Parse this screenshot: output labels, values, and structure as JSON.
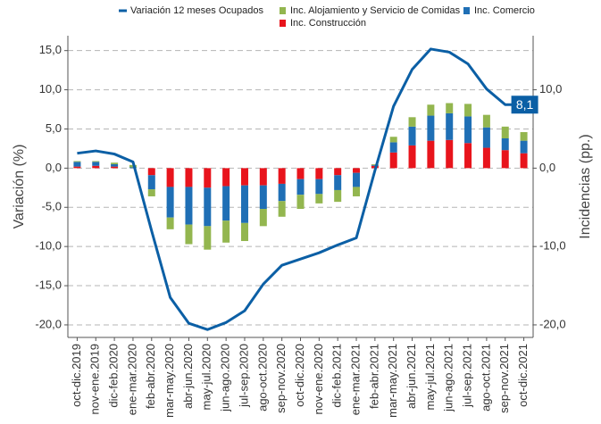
{
  "chart_data": {
    "type": "bar-line",
    "y_label": "Variación (%)",
    "y2_label": "Incidencias (pp.)",
    "categories": [
      "oct-dic.2019",
      "nov-ene.2019",
      "dic-feb.2020",
      "ene-mar.2020",
      "feb-abr.2020",
      "mar-may.2020",
      "abr-jun.2020",
      "may-jul.2020",
      "jun-ago.2020",
      "jul-sep.2020",
      "ago-oct.2020",
      "sep-nov.2020",
      "oct-dic.2020",
      "nov-ene.2020",
      "dic-feb.2021",
      "ene-mar.2021",
      "feb-abr.2021",
      "mar-may.2021",
      "abr-jun.2021",
      "may-jul.2021",
      "jun-ago.2021",
      "jul-sep.2021",
      "ago-oct.2021",
      "sep-nov.2021",
      "oct-dic.2021"
    ],
    "series": [
      {
        "name": "Variación 12 meses Ocupados",
        "type": "line",
        "color": "#0b5fa5",
        "values": [
          1.9,
          2.2,
          1.8,
          0.8,
          -8.0,
          -16.5,
          -19.8,
          -20.6,
          -19.7,
          -18.2,
          -14.8,
          -12.4,
          -11.6,
          -10.8,
          -9.8,
          -8.9,
          -0.3,
          7.9,
          12.6,
          15.2,
          14.8,
          13.3,
          10.1,
          8.1,
          8.1
        ],
        "value_labels": [
          null,
          null,
          null,
          null,
          null,
          null,
          null,
          null,
          null,
          null,
          null,
          null,
          null,
          null,
          null,
          null,
          null,
          null,
          null,
          null,
          null,
          null,
          null,
          null,
          "8,1"
        ]
      },
      {
        "name": "Inc. Alojamiento y Servicio de Comidas",
        "type": "bar",
        "axis": "y2",
        "color": "#93b64f",
        "values": [
          0.1,
          0.1,
          0.2,
          0.3,
          -0.9,
          -1.5,
          -2.5,
          -3.0,
          -2.8,
          -2.3,
          -2.2,
          -2.0,
          -1.8,
          -1.2,
          -1.5,
          -1.2,
          0.1,
          0.7,
          1.2,
          1.4,
          1.3,
          1.6,
          1.6,
          1.5,
          1.1
        ]
      },
      {
        "name": "Inc. Comercio",
        "type": "bar",
        "axis": "y2",
        "color": "#1f6fb5",
        "values": [
          0.6,
          0.5,
          0.3,
          0.1,
          -1.8,
          -3.9,
          -4.8,
          -4.9,
          -4.4,
          -4.8,
          -3.0,
          -2.2,
          -2.0,
          -1.9,
          -1.9,
          -1.8,
          0.1,
          1.3,
          2.4,
          3.2,
          3.4,
          3.4,
          2.6,
          1.5,
          1.6
        ]
      },
      {
        "name": "Inc. Construcción",
        "type": "bar",
        "axis": "y2",
        "color": "#e8141c",
        "values": [
          0.2,
          0.3,
          0.2,
          0.0,
          -0.9,
          -2.4,
          -2.4,
          -2.5,
          -2.3,
          -2.2,
          -2.2,
          -2.0,
          -1.4,
          -1.4,
          -0.9,
          -0.6,
          0.3,
          2.0,
          2.9,
          3.5,
          3.6,
          3.2,
          2.6,
          2.3,
          1.9
        ]
      }
    ],
    "ylim": [
      -21.6,
      16.9
    ],
    "yticks": [
      {
        "value": 15,
        "label": "15,0"
      },
      {
        "value": 10,
        "label": "10,0"
      },
      {
        "value": 5,
        "label": "5,0"
      },
      {
        "value": 0,
        "label": "0,0"
      },
      {
        "value": -5,
        "label": "-5,0"
      },
      {
        "value": -10,
        "label": "-10,0"
      },
      {
        "value": -15,
        "label": "-15,0"
      },
      {
        "value": -20,
        "label": "-20,0"
      }
    ],
    "y2lim": [
      -21.6,
      16.9
    ],
    "y2ticks": [
      {
        "value": 10,
        "label": "10,0"
      },
      {
        "value": 0,
        "label": "0,0"
      },
      {
        "value": -10,
        "label": "-10,0"
      },
      {
        "value": -20,
        "label": "-20,0"
      }
    ],
    "grid": true,
    "legend": "top"
  }
}
